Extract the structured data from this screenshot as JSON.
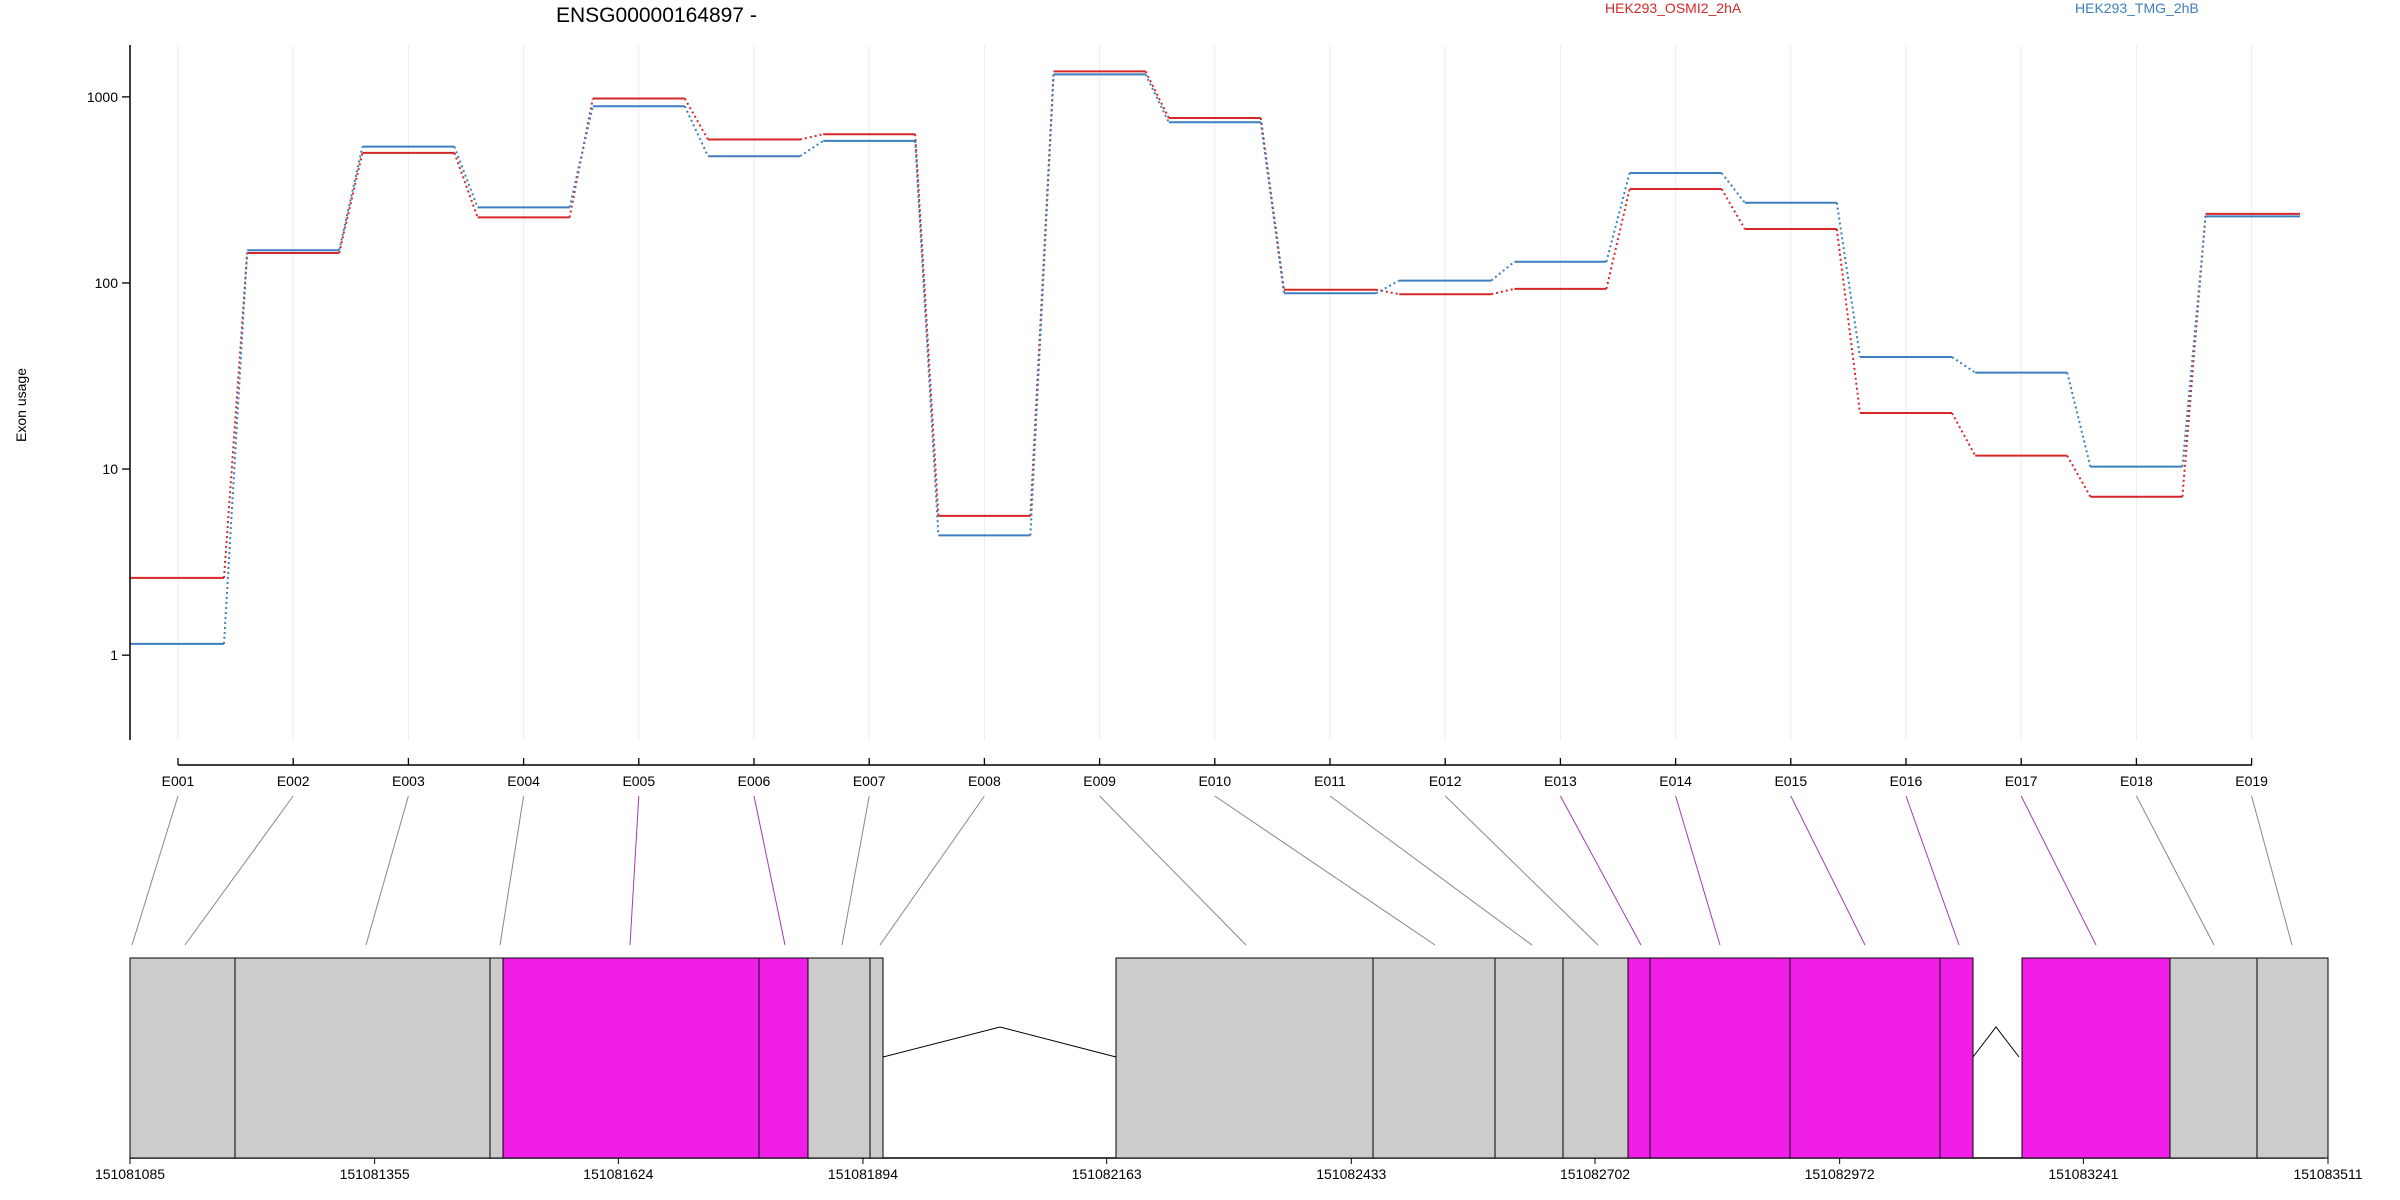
{
  "chart_data": {
    "type": "line",
    "title": "ENSG00000164897 -",
    "ylabel": "Exon usage",
    "yscale": "log",
    "ylim": [
      0.35,
      1900
    ],
    "y_ticks": [
      {
        "value": 1,
        "label": "1"
      },
      {
        "value": 10,
        "label": "10"
      },
      {
        "value": 100,
        "label": "100"
      },
      {
        "value": 1000,
        "label": "1000"
      }
    ],
    "categories": [
      "E001",
      "E002",
      "E003",
      "E004",
      "E005",
      "E006",
      "E007",
      "E008",
      "E009",
      "E010",
      "E011",
      "E012",
      "E013",
      "E014",
      "E015",
      "E016",
      "E017",
      "E018",
      "E019"
    ],
    "series": [
      {
        "name": "HEK293_OSMI2_2hA",
        "color": "#d62728",
        "values": [
          2.6,
          145,
          500,
          225,
          980,
          590,
          630,
          5.6,
          1370,
          770,
          92,
          87,
          93,
          320,
          195,
          20,
          11.8,
          7.1,
          235
        ]
      },
      {
        "name": "HEK293_TMG_2hB",
        "color": "#3b7fbf",
        "values": [
          1.15,
          150,
          540,
          255,
          890,
          480,
          580,
          4.4,
          1320,
          730,
          88,
          103,
          130,
          390,
          270,
          40,
          33,
          10.3,
          228
        ]
      }
    ],
    "grid": true,
    "legend_position": "top",
    "gene_model": {
      "coordinate_ticks": [
        "151081085",
        "151081355",
        "151081624",
        "151081894",
        "151082163",
        "151082433",
        "151082702",
        "151082972",
        "151083241",
        "151083511"
      ],
      "coordinate_range": [
        151081085,
        151083511
      ],
      "highlight_color": "#f01ee6",
      "exon_color": "#cccccc",
      "highlighted_exons": [
        "E005",
        "E006",
        "E013",
        "E014",
        "E015",
        "E016",
        "E017"
      ]
    }
  }
}
